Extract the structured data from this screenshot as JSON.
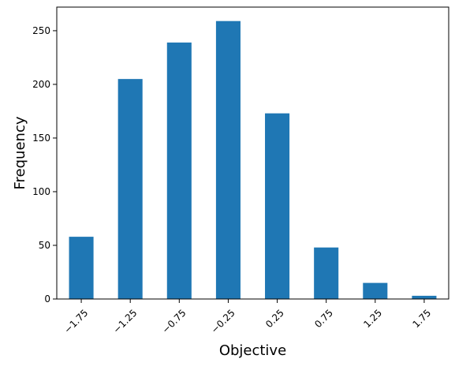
{
  "chart_data": {
    "type": "bar",
    "categories": [
      "−1.75",
      "−1.25",
      "−0.75",
      "−0.25",
      "0.25",
      "0.75",
      "1.25",
      "1.75"
    ],
    "values": [
      58,
      205,
      239,
      259,
      173,
      48,
      15,
      3
    ],
    "xlabel": "Objective",
    "ylabel": "Frequency",
    "ylim": [
      0,
      272
    ],
    "yticks": [
      0,
      50,
      100,
      150,
      200,
      250
    ],
    "xtick_rotation_deg": -45,
    "bar_color": "#1f77b4",
    "grid": false,
    "legend": "none"
  }
}
